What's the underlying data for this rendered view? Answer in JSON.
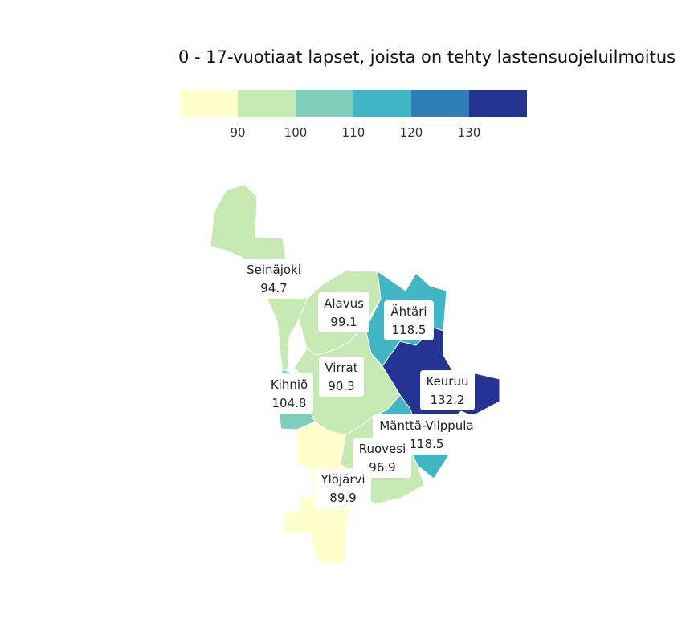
{
  "title": "0 - 17-vuotiaat lapset, joista on tehty lastensuojeluilmoitus",
  "legend": {
    "bins": [
      {
        "color": "#ffffcc",
        "from": null,
        "to": 90
      },
      {
        "color": "#c7e9b4",
        "from": 90,
        "to": 100
      },
      {
        "color": "#7fcdbb",
        "from": 100,
        "to": 110
      },
      {
        "color": "#41b6c4",
        "from": 110,
        "to": 120
      },
      {
        "color": "#2c7fb8",
        "from": 120,
        "to": 130
      },
      {
        "color": "#253494",
        "from": 130,
        "to": null
      }
    ],
    "ticks": [
      "90",
      "100",
      "110",
      "120",
      "130"
    ]
  },
  "municipalities": [
    {
      "key": "seinajoki",
      "name": "Seinäjoki",
      "value": "94.7",
      "color": "#c7e9b4"
    },
    {
      "key": "alavus",
      "name": "Alavus",
      "value": "99.1",
      "color": "#c7e9b4"
    },
    {
      "key": "ahtari",
      "name": "Ähtäri",
      "value": "118.5",
      "color": "#41b6c4"
    },
    {
      "key": "keuruu",
      "name": "Keuruu",
      "value": "132.2",
      "color": "#253494"
    },
    {
      "key": "virrat",
      "name": "Virrat",
      "value": "90.3",
      "color": "#c7e9b4"
    },
    {
      "key": "kihnio",
      "name": "Kihniö",
      "value": "104.8",
      "color": "#7fcdbb"
    },
    {
      "key": "mantta",
      "name": "Mänttä-Vilppula",
      "value": "118.5",
      "color": "#41b6c4"
    },
    {
      "key": "ruovesi",
      "name": "Ruovesi",
      "value": "96.9",
      "color": "#c7e9b4"
    },
    {
      "key": "ylojarvi",
      "name": "Ylöjärvi",
      "value": "89.9",
      "color": "#ffffcc"
    }
  ]
}
